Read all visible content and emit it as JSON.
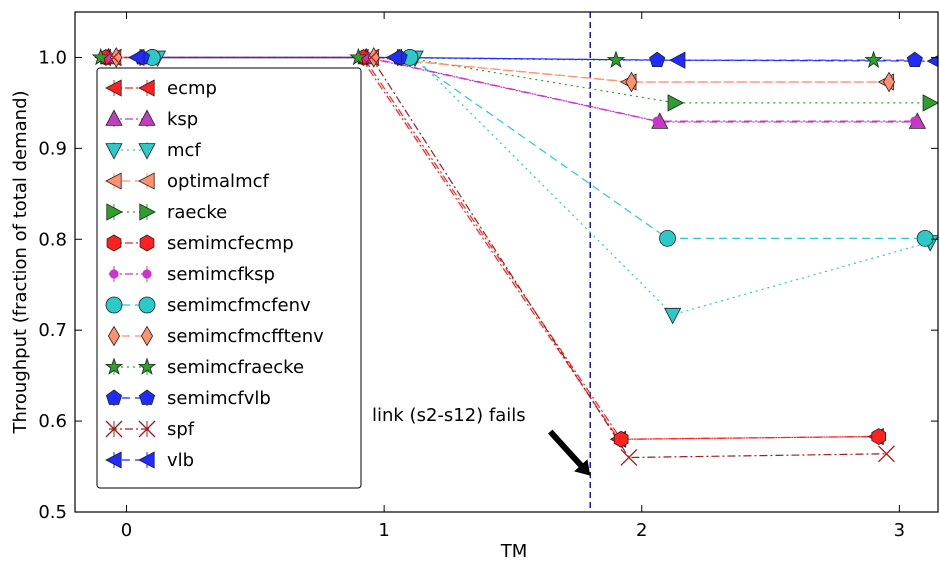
{
  "chart_data": {
    "type": "line",
    "title": "",
    "xlabel": "TM",
    "ylabel": "Throughput (fraction of total demand)",
    "xlim": [
      -0.2,
      3.15
    ],
    "ylim": [
      0.5,
      1.05
    ],
    "xticks": [
      0,
      1,
      2,
      3
    ],
    "xtick_labels": [
      "0",
      "1",
      "2",
      "3"
    ],
    "yticks": [
      0.5,
      0.6,
      0.7,
      0.8,
      0.9,
      1.0
    ],
    "ytick_labels": [
      "0.5",
      "0.6",
      "0.7",
      "0.8",
      "0.9",
      "1.0"
    ],
    "grid": false,
    "legend_position": "left",
    "annotation": {
      "text": "link (s2-s12) fails",
      "arrow_target_x": 1.8,
      "arrow_target_y": 0.54
    },
    "event_line": {
      "x": 1.8,
      "color": "#0000dd",
      "style": "dashed"
    },
    "series": [
      {
        "name": "ecmp",
        "color": "#ff2020",
        "marker": "triangle-left",
        "linestyle": "dashdot",
        "x": [
          -0.09,
          0.91,
          1.91,
          2.91
        ],
        "y": [
          1.0,
          1.0,
          0.58,
          0.583
        ]
      },
      {
        "name": "ksp",
        "color": "#bf3fbf",
        "marker": "triangle-up",
        "linestyle": "dashdot",
        "x": [
          -0.07,
          0.93,
          2.07,
          3.07
        ],
        "y": [
          1.0,
          1.0,
          0.929,
          0.929
        ]
      },
      {
        "name": "mcf",
        "color": "#2cc9c9",
        "marker": "triangle-down",
        "linestyle": "dotted",
        "x": [
          0.12,
          1.12,
          2.12,
          3.12
        ],
        "y": [
          1.0,
          1.0,
          0.717,
          0.797
        ]
      },
      {
        "name": "optimalmcf",
        "color": "#ff9070",
        "marker": "triangle-left",
        "linestyle": "dashed",
        "x": [
          -0.05,
          0.95,
          1.95,
          2.95
        ],
        "y": [
          1.0,
          1.0,
          0.973,
          0.973
        ]
      },
      {
        "name": "raecke",
        "color": "#2ca02c",
        "marker": "triangle-right",
        "linestyle": "dotted",
        "x": [
          0.08,
          1.08,
          2.13,
          3.12
        ],
        "y": [
          1.0,
          1.0,
          0.95,
          0.95
        ]
      },
      {
        "name": "semimcfecmp",
        "color": "#ff2020",
        "marker": "hexagon",
        "linestyle": "dashdot",
        "x": [
          -0.08,
          0.92,
          1.92,
          2.92
        ],
        "y": [
          1.0,
          1.0,
          0.58,
          0.583
        ]
      },
      {
        "name": "semimcfksp",
        "color": "#cc33cc",
        "marker": "point",
        "linestyle": "dashdot",
        "x": [
          -0.06,
          0.94,
          2.06,
          3.06
        ],
        "y": [
          1.0,
          1.0,
          0.93,
          0.93
        ]
      },
      {
        "name": "semimcfmcfenv",
        "color": "#2cc9c9",
        "marker": "circle",
        "linestyle": "dashed",
        "x": [
          0.1,
          1.1,
          2.1,
          3.1
        ],
        "y": [
          1.0,
          1.0,
          0.801,
          0.801
        ]
      },
      {
        "name": "semimcfmcfftenv",
        "color": "#ff9070",
        "marker": "diamond",
        "linestyle": "dashed",
        "x": [
          -0.04,
          0.96,
          1.96,
          2.96
        ],
        "y": [
          1.0,
          1.0,
          0.973,
          0.973
        ]
      },
      {
        "name": "semimcfraecke",
        "color": "#2ca02c",
        "marker": "star",
        "linestyle": "dotted",
        "x": [
          -0.1,
          0.9,
          1.9,
          2.9
        ],
        "y": [
          1.0,
          1.0,
          0.997,
          0.997
        ]
      },
      {
        "name": "semimcfvlb",
        "color": "#1f2bff",
        "marker": "pentagon",
        "linestyle": "dashed",
        "x": [
          0.06,
          1.06,
          2.06,
          3.06
        ],
        "y": [
          1.0,
          1.0,
          0.997,
          0.997
        ]
      },
      {
        "name": "spf",
        "color": "#a01e1e",
        "marker": "x",
        "linestyle": "dashdot",
        "x": [
          -0.05,
          0.95,
          1.95,
          2.95
        ],
        "y": [
          1.0,
          1.0,
          0.56,
          0.564
        ]
      },
      {
        "name": "vlb",
        "color": "#1f2bff",
        "marker": "triangle-left",
        "linestyle": "dashed",
        "x": [
          0.04,
          1.04,
          2.14,
          3.14
        ],
        "y": [
          1.0,
          1.0,
          0.997,
          0.996
        ]
      }
    ]
  }
}
